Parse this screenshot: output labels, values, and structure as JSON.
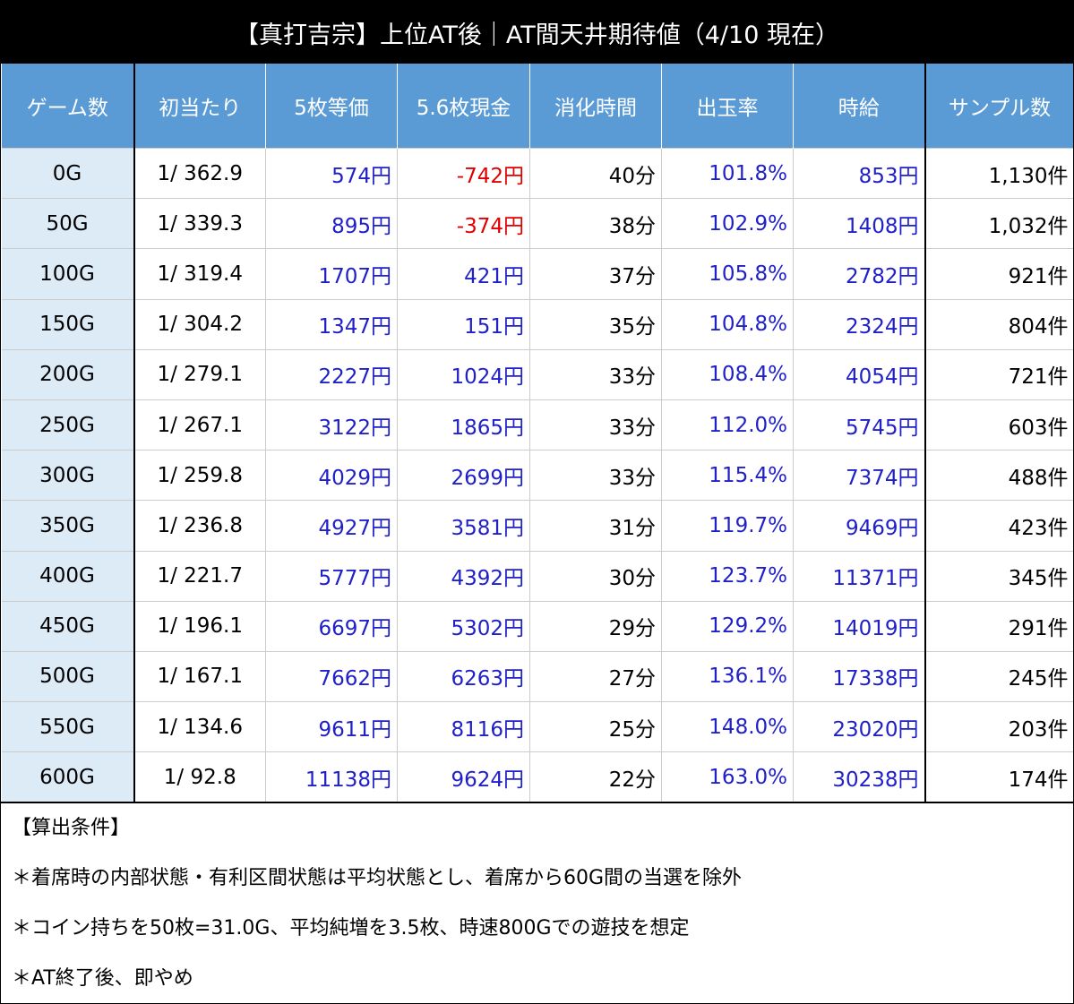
{
  "title": "【真打吉宗】上位AT後｜AT間天井期待値（4/10 現在）",
  "table": {
    "header": [
      "ゲーム数",
      "初当たり",
      "5枚等価",
      "5.6枚現金",
      "消化時間",
      "出玉率",
      "時給",
      "サンプル数"
    ],
    "rows": [
      [
        "0G",
        "1/ 362.9",
        "574円",
        "-742円",
        "40分",
        "101.8%",
        "853円",
        "1,130件"
      ],
      [
        "50G",
        "1/ 339.3",
        "895円",
        "-374円",
        "38分",
        "102.9%",
        "1408円",
        "1,032件"
      ],
      [
        "100G",
        "1/ 319.4",
        "1707円",
        "421円",
        "37分",
        "105.8%",
        "2782円",
        "921件"
      ],
      [
        "150G",
        "1/ 304.2",
        "1347円",
        "151円",
        "35分",
        "104.8%",
        "2324円",
        "804件"
      ],
      [
        "200G",
        "1/ 279.1",
        "2227円",
        "1024円",
        "33分",
        "108.4%",
        "4054円",
        "721件"
      ],
      [
        "250G",
        "1/ 267.1",
        "3122円",
        "1865円",
        "33分",
        "112.0%",
        "5745円",
        "603件"
      ],
      [
        "300G",
        "1/ 259.8",
        "4029円",
        "2699円",
        "33分",
        "115.4%",
        "7374円",
        "488件"
      ],
      [
        "350G",
        "1/ 236.8",
        "4927円",
        "3581円",
        "31分",
        "119.7%",
        "9469円",
        "423件"
      ],
      [
        "400G",
        "1/ 221.7",
        "5777円",
        "4392円",
        "30分",
        "123.7%",
        "11371円",
        "345件"
      ],
      [
        "450G",
        "1/ 196.1",
        "6697円",
        "5302円",
        "29分",
        "129.2%",
        "14019円",
        "291件"
      ],
      [
        "500G",
        "1/ 167.1",
        "7662円",
        "6263円",
        "27分",
        "136.1%",
        "17338円",
        "245件"
      ],
      [
        "550G",
        "1/ 134.6",
        "9611円",
        "8116円",
        "25分",
        "148.0%",
        "23020円",
        "203件"
      ],
      [
        "600G",
        "1/ 92.8",
        "11138円",
        "9624円",
        "22分",
        "163.0%",
        "30238円",
        "174件"
      ]
    ]
  },
  "notes": {
    "title": "【算出条件】",
    "items": [
      "＊着席時の内部状態・有利区間状態は平均状態とし、着席から60G間の当選を除外",
      "＊コイン持ちを50枚=31.0G、平均純増を3.5枚、時速800Gでの遊技を想定",
      "＊AT終了後、即やめ"
    ]
  }
}
